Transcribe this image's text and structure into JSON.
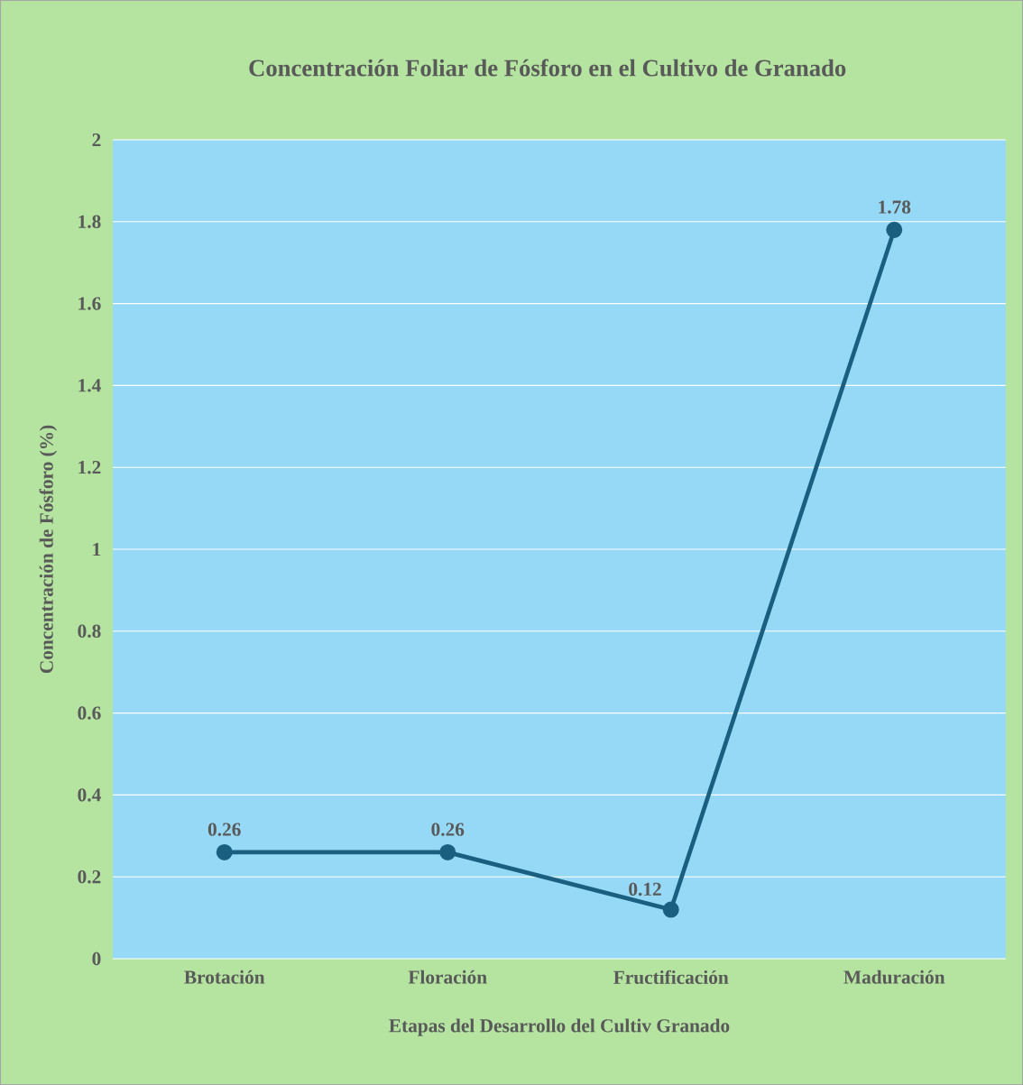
{
  "chart_data": {
    "type": "line",
    "title": "Concentración Foliar de Fósforo en el Cultivo de Granado",
    "xlabel": "Etapas del Desarrollo del Cultiv Granado",
    "ylabel": "Concentración de Fósforo (%)",
    "categories": [
      "Brotación",
      "Floración",
      "Fructificación",
      "Maduración"
    ],
    "values": [
      0.26,
      0.26,
      0.12,
      1.78
    ],
    "color": "#1a5f80",
    "ylim": [
      0,
      2
    ],
    "yticks": [
      0,
      0.2,
      0.4,
      0.6,
      0.8,
      1,
      1.2,
      1.4,
      1.6,
      1.8,
      2
    ],
    "grid": "y",
    "marker": "circle",
    "line_style": "solid",
    "data_labels": true
  }
}
